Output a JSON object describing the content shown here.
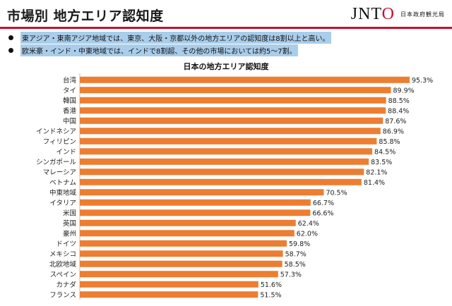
{
  "header": {
    "title": "市場別 地方エリア認知度",
    "logo_text_1": "JN",
    "logo_text_2": "T",
    "logo_text_3": "O",
    "logo_org": "日本政府観光局"
  },
  "colors": {
    "bar": "#ed7d31",
    "accent": "#c8102e",
    "highlight": "#a9cdea"
  },
  "bullets": [
    "東アジア・東南アジア地域では、東京、大阪・京都以外の地方エリアの認知度は8割以上と高い。",
    "欧米豪・インド・中東地域では、インドで8割超、その他の市場においては約5～7割。"
  ],
  "chart_data": {
    "type": "bar",
    "orientation": "horizontal",
    "title": "日本の地方エリア認知度",
    "categories": [
      "台湾",
      "タイ",
      "韓国",
      "香港",
      "中国",
      "インドネシア",
      "フィリピン",
      "インド",
      "シンガポール",
      "マレーシア",
      "ベトナム",
      "中東地域",
      "イタリア",
      "米国",
      "英国",
      "豪州",
      "ドイツ",
      "メキシコ",
      "北欧地域",
      "スペイン",
      "カナダ",
      "フランス"
    ],
    "values": [
      95.3,
      89.9,
      88.5,
      88.4,
      87.6,
      86.9,
      85.8,
      84.5,
      83.5,
      82.1,
      81.4,
      70.5,
      66.7,
      66.6,
      62.4,
      62.0,
      59.8,
      58.7,
      58.5,
      57.3,
      51.6,
      51.5
    ],
    "value_labels": [
      "95.3%",
      "89.9%",
      "88.5%",
      "88.4%",
      "87.6%",
      "86.9%",
      "85.8%",
      "84.5%",
      "83.5%",
      "82.1%",
      "81.4%",
      "70.5%",
      "66.7%",
      "66.6%",
      "62.4%",
      "62.0%",
      "59.8%",
      "58.7%",
      "58.5%",
      "57.3%",
      "51.6%",
      "51.5%"
    ],
    "xlim": [
      0,
      100
    ],
    "grid": false,
    "legend": "none"
  }
}
